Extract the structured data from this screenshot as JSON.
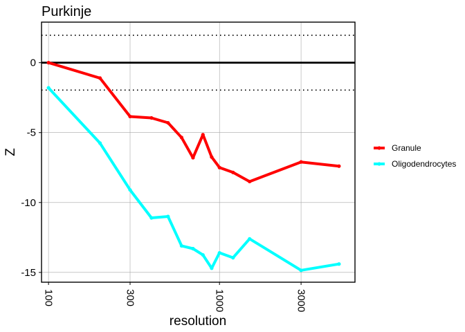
{
  "chart_data": {
    "type": "line",
    "title": "Purkinje",
    "xlabel": "resolution",
    "ylabel": "Z",
    "x_scale": "log10",
    "xlim": [
      91,
      6200
    ],
    "ylim": [
      -15.7,
      2.9
    ],
    "x_ticks": [
      100,
      300,
      1000,
      3000
    ],
    "x_tick_labels": [
      "100",
      "300",
      "1000",
      "3000"
    ],
    "y_ticks": [
      0,
      -5,
      -10,
      -15
    ],
    "y_tick_labels": [
      "0",
      "-5",
      "-10",
      "-15"
    ],
    "grid": true,
    "reference_lines": [
      {
        "y": 0,
        "style": "solid"
      },
      {
        "y": 1.96,
        "style": "dotted"
      },
      {
        "y": -1.96,
        "style": "dotted"
      }
    ],
    "legend_position": "right",
    "series": [
      {
        "name": "Granule",
        "color": "#ff0000",
        "x": [
          100,
          200,
          300,
          400,
          500,
          600,
          700,
          800,
          900,
          1000,
          1200,
          1500,
          3000,
          5000
        ],
        "y": [
          0,
          -1.1,
          -3.85,
          -3.95,
          -4.3,
          -5.35,
          -6.8,
          -5.15,
          -6.75,
          -7.5,
          -7.85,
          -8.5,
          -7.1,
          -7.4
        ]
      },
      {
        "name": "Oligodendrocytes",
        "color": "#00ffff",
        "x": [
          100,
          200,
          300,
          400,
          500,
          600,
          700,
          800,
          900,
          1000,
          1200,
          1500,
          3000,
          5000
        ],
        "y": [
          -1.8,
          -5.75,
          -9.1,
          -11.1,
          -11.0,
          -13.1,
          -13.3,
          -13.75,
          -14.7,
          -13.6,
          -13.95,
          -12.6,
          -14.85,
          -14.4
        ]
      }
    ]
  }
}
